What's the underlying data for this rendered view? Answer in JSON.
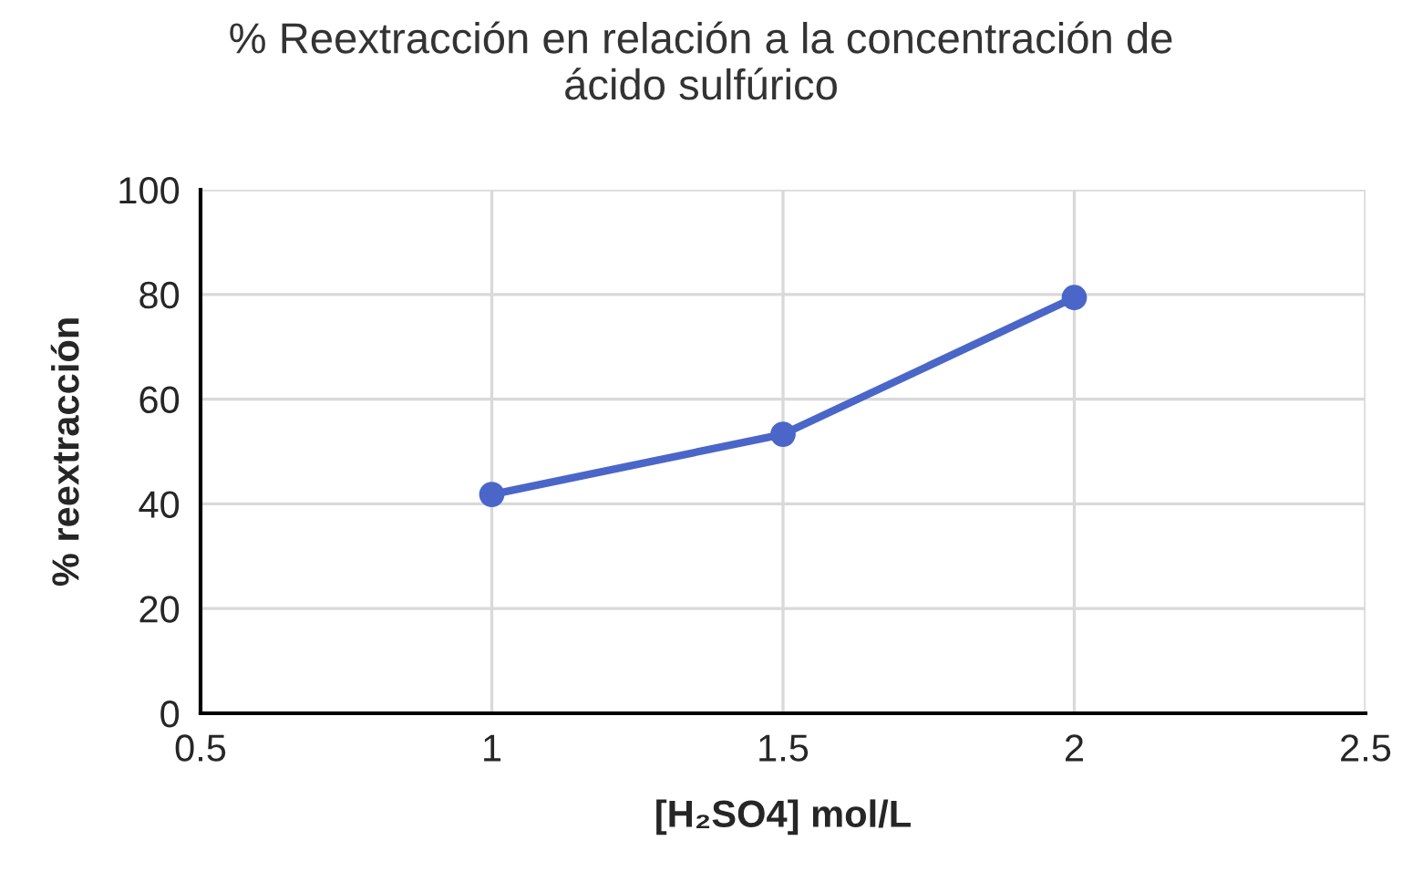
{
  "chart_data": {
    "type": "line",
    "title": "% Reextracción en relación a la concentración de\nácido sulfúrico",
    "xlabel": "[H₂SO4] mol/L",
    "ylabel": "% reextracción",
    "x": [
      1,
      1.5,
      2
    ],
    "series": [
      {
        "color": "#4a66c8",
        "values": [
          41.8,
          53.3,
          79.4
        ]
      }
    ],
    "xlim": [
      0.5,
      2.5
    ],
    "xticks": [
      0.5,
      1,
      1.5,
      2,
      2.5
    ],
    "ylim": [
      0,
      100
    ],
    "yticks": [
      0,
      20,
      40,
      60,
      80,
      100
    ],
    "grid": true,
    "marker": "circle",
    "line_style": "solid"
  }
}
